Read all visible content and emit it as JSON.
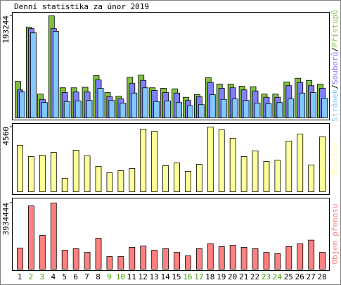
{
  "chart_data": [
    {
      "type": "bar",
      "title": "Denní statistika za únor 2019",
      "series": [
        {
          "name": "Přístupů",
          "color": "#80c040",
          "values": [
            69000,
            172000,
            45000,
            193244,
            57000,
            57000,
            58000,
            80000,
            48000,
            41000,
            77000,
            81000,
            57000,
            56000,
            55000,
            39000,
            44000,
            76000,
            64000,
            64000,
            60000,
            59000,
            45000,
            45000,
            68000,
            75000,
            71000,
            64000
          ]
        },
        {
          "name": "Souborů",
          "color": "#8080ff",
          "values": [
            53000,
            169000,
            35000,
            169000,
            48000,
            49000,
            49000,
            72000,
            40000,
            36000,
            65000,
            71000,
            52000,
            48000,
            47000,
            33000,
            40000,
            67000,
            56000,
            57000,
            53000,
            51000,
            39000,
            39000,
            61000,
            67000,
            61000,
            56000
          ]
        },
        {
          "name": "Stránek",
          "color": "#80c8ff",
          "values": [
            49000,
            161000,
            29000,
            164000,
            31000,
            32000,
            33000,
            56000,
            33000,
            28000,
            47000,
            57000,
            31000,
            32000,
            29000,
            23000,
            25000,
            44000,
            35000,
            36000,
            33000,
            28000,
            27000,
            29000,
            36000,
            47000,
            48000,
            37000
          ]
        }
      ],
      "legend_separator": "/",
      "ylim": [
        0,
        193244
      ],
      "yticks": [
        193244
      ]
    },
    {
      "type": "bar",
      "series": [
        {
          "name": "Návštěv",
          "color": "#ffff99",
          "values": [
            3280,
            2480,
            2580,
            2780,
            950,
            2930,
            2530,
            1790,
            1340,
            1490,
            1640,
            4410,
            4260,
            1840,
            2030,
            1440,
            1930,
            4560,
            4360,
            3770,
            2480,
            2880,
            2130,
            2230,
            3570,
            4060,
            1890,
            3870
          ]
        }
      ],
      "ylim": [
        0,
        4560
      ],
      "yticks": [
        4560
      ]
    },
    {
      "type": "bar",
      "series": [
        {
          "name": "Objem přenosu",
          "color": "#ff8080",
          "values": [
            1260000,
            3770000,
            2010000,
            3934444,
            1130000,
            1220000,
            1000000,
            1840000,
            750000,
            750000,
            1300000,
            1380000,
            1130000,
            1220000,
            1000000,
            790000,
            1220000,
            1510000,
            1340000,
            1420000,
            1300000,
            1220000,
            1000000,
            920000,
            1340000,
            1510000,
            1730000,
            1000000
          ]
        }
      ],
      "ylim": [
        0,
        3934444
      ],
      "yticks": [
        3934444
      ],
      "categories": [
        "1",
        "2",
        "3",
        "4",
        "5",
        "6",
        "7",
        "8",
        "9",
        "10",
        "11",
        "12",
        "13",
        "14",
        "15",
        "16",
        "17",
        "18",
        "19",
        "20",
        "21",
        "22",
        "23",
        "24",
        "25",
        "26",
        "27",
        "28"
      ],
      "category_colors": [
        "#000000",
        "#40a000",
        "#40a000",
        "#000000",
        "#000000",
        "#000000",
        "#000000",
        "#000000",
        "#40a000",
        "#40a000",
        "#000000",
        "#000000",
        "#000000",
        "#000000",
        "#000000",
        "#40a000",
        "#40a000",
        "#000000",
        "#000000",
        "#000000",
        "#000000",
        "#000000",
        "#40a000",
        "#40a000",
        "#000000",
        "#000000",
        "#000000",
        "#000000"
      ]
    }
  ]
}
